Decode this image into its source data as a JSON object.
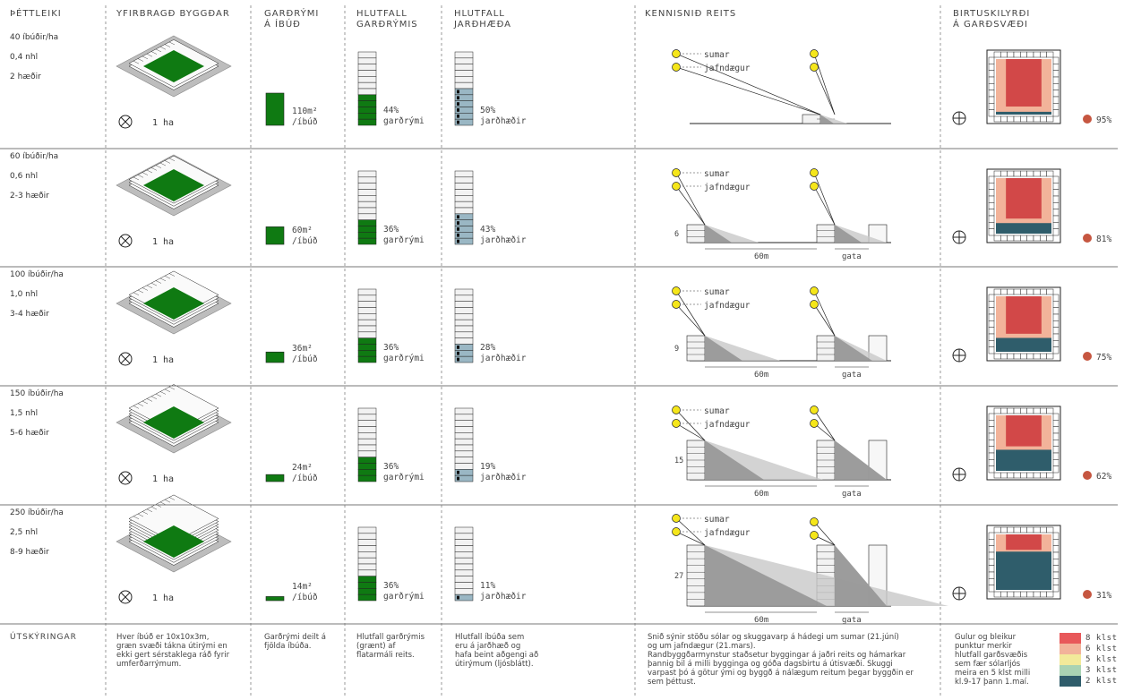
{
  "headers": {
    "density": "ÞÉTTLEIKI",
    "overview": "YFIRBRAGÐ BYGGÐAR",
    "yard_per_unit": "GARÐRÝMI\nÁ ÍBÚÐ",
    "yard_ratio": "HLUTFALL\nGARÐRÝMIS",
    "ground_ratio": "HLUTFALL\nJARÐHÆÐA",
    "section": "KENNISNIÐ REITS",
    "sunlight": "BIRTUSKILYRÐI\nÁ GARÐSVÆÐI"
  },
  "area_label": "1 ha",
  "sun_labels": {
    "summer": "sumar",
    "equinox": "jafndægur"
  },
  "section_labels": {
    "width": "60m",
    "street": "gata"
  },
  "rows": [
    {
      "density": "40 íbúðir/ha",
      "far": "0,4 nhl",
      "floors": "2 hæðir",
      "yard": "110m²",
      "yard_unit": "/íbúð",
      "yard_value": 110,
      "yard_pct": 44,
      "yard_pct_label": "44%",
      "yard_pct_text": "garðrými",
      "ground_pct": 50,
      "ground_pct_label": "50%",
      "ground_text": "jarðhæðir",
      "height_label": "",
      "floors_n": 2,
      "sun_pct": "95%",
      "sun_value": 95
    },
    {
      "density": "60 íbúðir/ha",
      "far": "0,6 nhl",
      "floors": "2-3 hæðir",
      "yard": "60m²",
      "yard_unit": "/íbúð",
      "yard_value": 60,
      "yard_pct": 36,
      "yard_pct_label": "36%",
      "yard_pct_text": "garðrými",
      "ground_pct": 43,
      "ground_pct_label": "43%",
      "ground_text": "jarðhæðir",
      "height_label": "6",
      "floors_n": 2.5,
      "sun_pct": "81%",
      "sun_value": 81
    },
    {
      "density": "100 íbúðir/ha",
      "far": "1,0 nhl",
      "floors": "3-4 hæðir",
      "yard": "36m²",
      "yard_unit": "/íbúð",
      "yard_value": 36,
      "yard_pct": 36,
      "yard_pct_label": "36%",
      "yard_pct_text": "garðrými",
      "ground_pct": 28,
      "ground_pct_label": "28%",
      "ground_text": "jarðhæðir",
      "height_label": "9",
      "floors_n": 3.5,
      "sun_pct": "75%",
      "sun_value": 75
    },
    {
      "density": "150 íbúðir/ha",
      "far": "1,5 nhl",
      "floors": "5-6 hæðir",
      "yard": "24m²",
      "yard_unit": "/íbúð",
      "yard_value": 24,
      "yard_pct": 36,
      "yard_pct_label": "36%",
      "yard_pct_text": "garðrými",
      "ground_pct": 19,
      "ground_pct_label": "19%",
      "ground_text": "jarðhæðir",
      "height_label": "15",
      "floors_n": 5.5,
      "sun_pct": "62%",
      "sun_value": 62
    },
    {
      "density": "250 íbúðir/ha",
      "far": "2,5 nhl",
      "floors": "8-9 hæðir",
      "yard": "14m²",
      "yard_unit": "/íbúð",
      "yard_value": 14,
      "yard_pct": 36,
      "yard_pct_label": "36%",
      "yard_pct_text": "garðrými",
      "ground_pct": 11,
      "ground_pct_label": "11%",
      "ground_text": "jarðhæðir",
      "height_label": "27",
      "floors_n": 8.5,
      "sun_pct": "31%",
      "sun_value": 31
    }
  ],
  "footer": {
    "title": "ÚTSKÝRINGAR",
    "overview": "Hver íbúð er 10x10x3m,\ngræn svæði tákna útirými en\nekki gert sérstaklega ráð fyrir\numferðarrýmum.",
    "yard": "Garðrými deilt á\nfjölda íbúða.",
    "yard_ratio": "Hlutfall garðrýmis\n(grænt) af\nflatarmáli reits.",
    "ground_ratio": "Hlutfall íbúða sem\neru á jarðhæð og\nhafa beint aðgengi að\nútirýmum (ljósblátt).",
    "section": "Snið sýnir stöðu sólar og skuggavarp á hádegi um sumar (21.júní)\nog um jafndægur (21.mars).\nRandbyggðarmynstur staðsetur byggingar á jaðri reits og hámarkar\nþannig bil á milli bygginga og góða dagsbirtu á útisvæði. Skuggi\nvarpast þó á götur ými og byggð á nálægum reitum þegar byggðin er\nsem þéttust.",
    "sunlight": "Gulur og bleikur\npunktur merkir\nhlutfall garðsvæðis\nsem fær sólarljós\nmeira en 5 klst milli\nkl.9-17 þann 1.maí."
  },
  "legend": [
    {
      "label": "8 klst",
      "color": "#e8585a"
    },
    {
      "label": "6 klst",
      "color": "#f2b39a"
    },
    {
      "label": "5 klst",
      "color": "#f2ea9a"
    },
    {
      "label": "3 klst",
      "color": "#a9d3b3"
    },
    {
      "label": "2 klst",
      "color": "#2f5d6b"
    }
  ],
  "colors": {
    "green": "#0f7a12",
    "groundblue": "#9ab7c4",
    "red": "#d24848",
    "dot": "#c65640",
    "sun": "#f5e61a"
  }
}
